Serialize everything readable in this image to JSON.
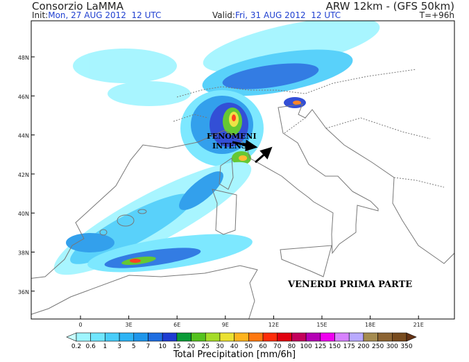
{
  "header": {
    "left_title": "Consorzio LaMMA",
    "right_title": "ARW 12km - (GFS 50km)",
    "init_label": "Init:",
    "init_value": "Mon, 27 AUG 2012  12 UTC",
    "valid_label": "Valid:",
    "valid_value": "Fri, 31 AUG 2012  12 UTC",
    "forecast_time": "T=+96h"
  },
  "map": {
    "lat_labels": [
      "48N",
      "46N",
      "44N",
      "42N",
      "40N",
      "38N",
      "36N"
    ],
    "lon_labels": [
      "0",
      "3E",
      "6E",
      "9E",
      "12E",
      "15E",
      "18E",
      "21E"
    ],
    "annotations": {
      "fenomeni_line1": "FENOMENI",
      "fenomeni_line2": "INTENSI",
      "period": "VENERDI PRIMA PARTE"
    }
  },
  "colorbar": {
    "title": "Total Precipitation [mm/6h]",
    "labels": [
      0.2,
      0.6,
      1,
      3,
      5,
      7,
      10,
      15,
      20,
      25,
      30,
      40,
      50,
      60,
      70,
      80,
      100,
      125,
      150,
      175,
      200,
      250,
      300,
      350
    ],
    "colors": [
      "#c8ffff",
      "#9ff5ff",
      "#70e6ff",
      "#48cdfa",
      "#2db4f5",
      "#1e96eb",
      "#1e6ee1",
      "#1e3cd2",
      "#0a9b37",
      "#55c31e",
      "#a5dc28",
      "#ebe132",
      "#ffb41e",
      "#ff780f",
      "#ff2d0a",
      "#e1000f",
      "#c3005a",
      "#b400b4",
      "#f000f0",
      "#d782ff",
      "#b9aaff",
      "#a58c50",
      "#8c6432",
      "#784b1e",
      "#643214"
    ]
  }
}
